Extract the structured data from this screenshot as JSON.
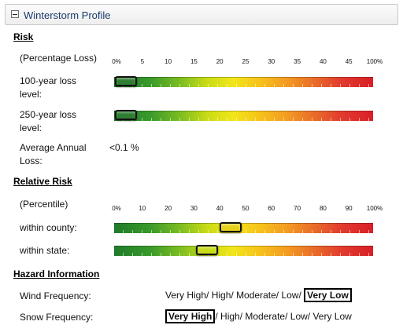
{
  "panel": {
    "title": "Winterstorm Profile"
  },
  "risk": {
    "heading": "Risk",
    "scale_label": "(Percentage Loss)",
    "ticks": [
      "0%",
      "5",
      "10",
      "15",
      "20",
      "25",
      "30",
      "35",
      "40",
      "45",
      "100%"
    ],
    "loss_100": {
      "label_line1": "100-year loss",
      "label_line2": "level:",
      "value_fraction": 0.045
    },
    "loss_250": {
      "label_line1": "250-year loss",
      "label_line2": "level:",
      "value_fraction": 0.045
    },
    "aal": {
      "label_line1": "Average Annual",
      "label_line2": "Loss:",
      "value": "<0.1 %"
    }
  },
  "relative": {
    "heading": "Relative Risk",
    "scale_label": "(Percentile)",
    "ticks": [
      "0%",
      "10",
      "20",
      "30",
      "40",
      "50",
      "60",
      "70",
      "80",
      "90",
      "100%"
    ],
    "county": {
      "label": "within county:",
      "value_fraction": 0.45
    },
    "state": {
      "label": "within state:",
      "value_fraction": 0.36
    }
  },
  "hazard": {
    "heading": "Hazard Information",
    "wind": {
      "label": "Wind Frequency:",
      "options": [
        "Very High",
        "High",
        "Moderate",
        "Low",
        "Very Low"
      ],
      "selected_index": 4
    },
    "snow": {
      "label": "Snow Frequency:",
      "options": [
        "Very High",
        "High",
        "Moderate",
        "Low",
        "Very Low"
      ],
      "selected_index": 0
    }
  },
  "colors": {
    "knob_risk": "#2f7d32",
    "knob_county": "#e6d21a",
    "knob_state": "#c9dc1a",
    "title_text": "#1a3a6b"
  }
}
